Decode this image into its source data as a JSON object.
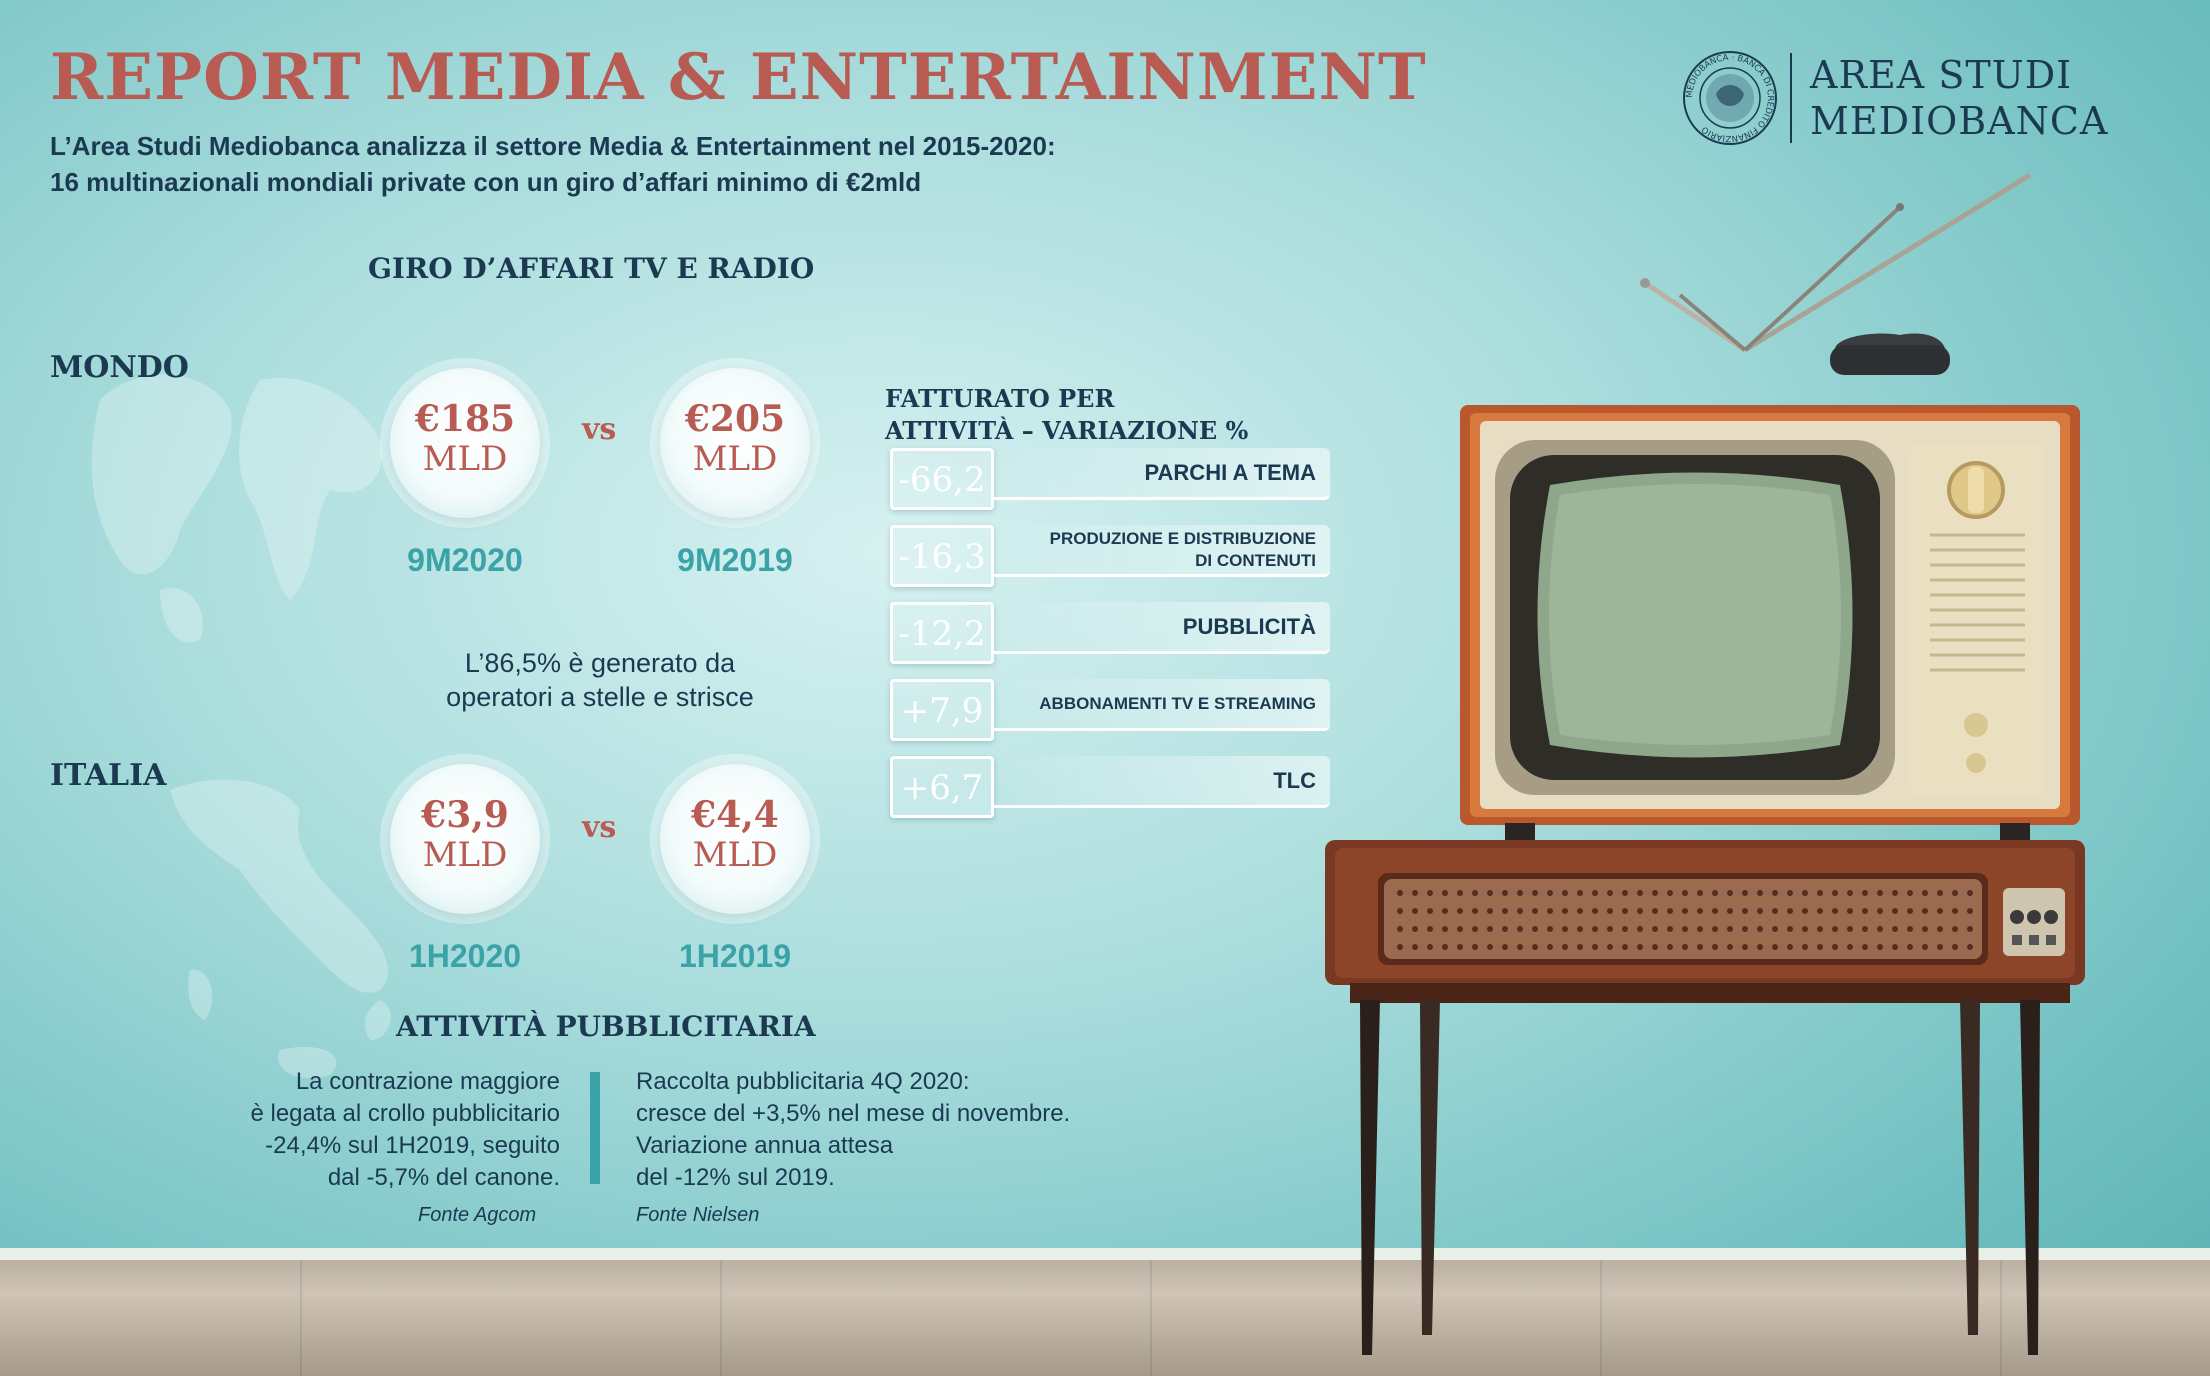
{
  "title": "REPORT MEDIA & ENTERTAINMENT",
  "subtitle": {
    "line1": "L’Area Studi Mediobanca analizza il settore Media & Entertainment nel 2015-2020:",
    "line2": "16 multinazionali mondiali private con un giro d’affari minimo di €2mld"
  },
  "logo": {
    "line1": "AREA STUDI",
    "line2": "MEDIOBANCA",
    "seal_text": "MEDIOBANCA · BANCA DI CREDITO FINANZIARIO"
  },
  "revenue": {
    "heading": "GIRO D’AFFARI TV E RADIO",
    "vs": "vs",
    "world": {
      "label": "MONDO",
      "current": {
        "amount": "€185",
        "unit": "MLD",
        "period": "9M2020"
      },
      "previous": {
        "amount": "€205",
        "unit": "MLD",
        "period": "9M2019"
      }
    },
    "note": {
      "line1": "L’86,5% è generato da",
      "line2": "operatori a stelle e strisce"
    },
    "italy": {
      "label": "ITALIA",
      "current": {
        "amount": "€3,9",
        "unit": "MLD",
        "period": "1H2020"
      },
      "previous": {
        "amount": "€4,4",
        "unit": "MLD",
        "period": "1H2019"
      }
    }
  },
  "activity_change": {
    "heading_line1": "FATTURATO PER",
    "heading_line2": "ATTIVITÀ – VARIAZIONE %",
    "items": [
      {
        "value": "-66,2",
        "label_line1": "PARCHI A TEMA",
        "label_line2": ""
      },
      {
        "value": "-16,3",
        "label_line1": "PRODUZIONE E DISTRIBUZIONE",
        "label_line2": "DI CONTENUTI"
      },
      {
        "value": "-12,2",
        "label_line1": "PUBBLICITÀ",
        "label_line2": ""
      },
      {
        "value": "+7,9",
        "label_line1": "ABBONAMENTI TV E STREAMING",
        "label_line2": ""
      },
      {
        "value": "+6,7",
        "label_line1": "TLC",
        "label_line2": ""
      }
    ]
  },
  "advertising": {
    "heading": "ATTIVITÀ PUBBLICITARIA",
    "left": {
      "line1": "La contrazione maggiore",
      "line2": "è legata al crollo pubblicitario",
      "line3": "-24,4% sul 1H2019, seguito",
      "line4": "dal -5,7% del canone.",
      "source": "Fonte Agcom"
    },
    "right": {
      "line1": "Raccolta pubblicitaria 4Q 2020:",
      "line2": "cresce del +3,5% nel mese di novembre.",
      "line3": "Variazione annua attesa",
      "line4": "del -12% sul 2019.",
      "source": "Fonte Nielsen"
    }
  }
}
